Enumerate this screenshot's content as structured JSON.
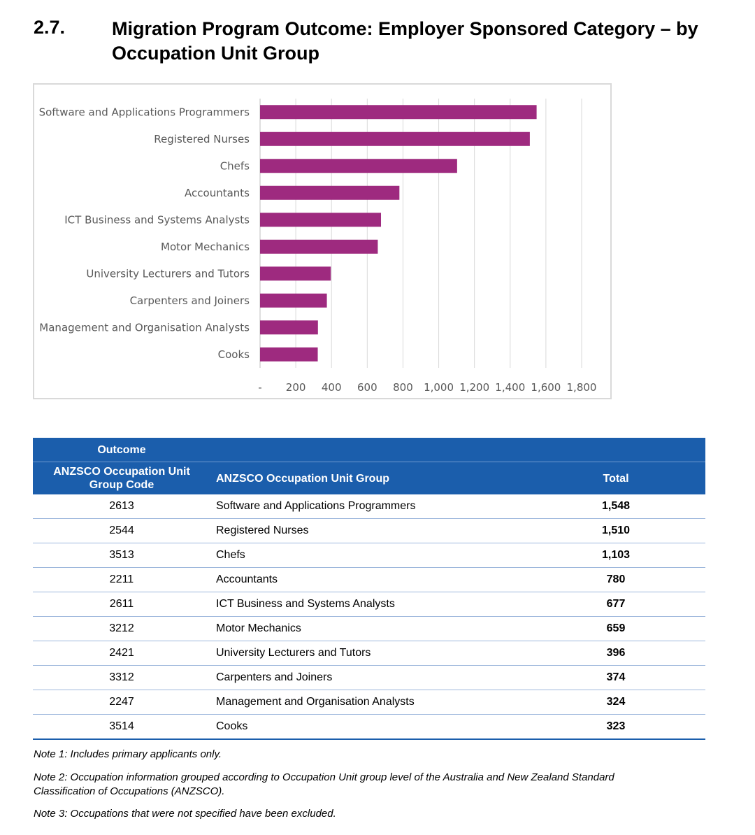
{
  "heading": {
    "number": "2.7.",
    "title": "Migration Program Outcome: Employer Sponsored Category – by Occupation Unit Group"
  },
  "chart_data": {
    "type": "bar",
    "orientation": "horizontal",
    "categories": [
      "Software and Applications Programmers",
      "Registered Nurses",
      "Chefs",
      "Accountants",
      "ICT Business and Systems Analysts",
      "Motor Mechanics",
      "University Lecturers and Tutors",
      "Carpenters and Joiners",
      "Management and Organisation Analysts",
      "Cooks"
    ],
    "values": [
      1548,
      1510,
      1103,
      780,
      677,
      659,
      396,
      374,
      324,
      323
    ],
    "xlim": [
      0,
      1800
    ],
    "x_ticks": [
      0,
      200,
      400,
      600,
      800,
      1000,
      1200,
      1400,
      1600,
      1800
    ],
    "x_tick_labels": [
      "-",
      "200",
      "400",
      "600",
      "800",
      "1,000",
      "1,200",
      "1,400",
      "1,600",
      "1,800"
    ],
    "grid": true,
    "bar_color": "#9e2a7f",
    "grid_color": "#d9d9d9"
  },
  "table": {
    "outcome_label": "Outcome",
    "headers": {
      "code": "ANZSCO Occupation Unit Group Code",
      "group": "ANZSCO Occupation Unit Group",
      "total": "Total"
    },
    "rows": [
      {
        "code": "2613",
        "group": "Software and Applications Programmers",
        "total": "1,548"
      },
      {
        "code": "2544",
        "group": "Registered Nurses",
        "total": "1,510"
      },
      {
        "code": "3513",
        "group": "Chefs",
        "total": "1,103"
      },
      {
        "code": "2211",
        "group": "Accountants",
        "total": "780"
      },
      {
        "code": "2611",
        "group": "ICT Business and Systems Analysts",
        "total": "677"
      },
      {
        "code": "3212",
        "group": "Motor Mechanics",
        "total": "659"
      },
      {
        "code": "2421",
        "group": "University Lecturers and Tutors",
        "total": "396"
      },
      {
        "code": "3312",
        "group": "Carpenters and Joiners",
        "total": "374"
      },
      {
        "code": "2247",
        "group": "Management and Organisation Analysts",
        "total": "324"
      },
      {
        "code": "3514",
        "group": "Cooks",
        "total": "323"
      }
    ],
    "header_color": "#1b5eac"
  },
  "notes": [
    "Note 1: Includes primary applicants only.",
    "Note 2: Occupation information grouped according to Occupation Unit group level of the Australia and New Zealand Standard Classification of Occupations (ANZSCO).",
    "Note 3: Occupations that were not specified have been excluded."
  ]
}
